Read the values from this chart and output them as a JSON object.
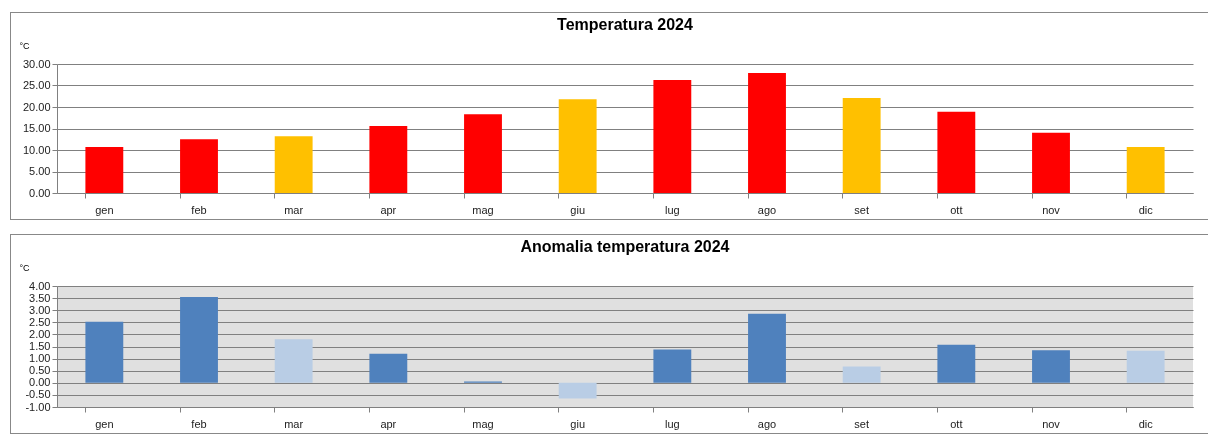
{
  "chart_data": [
    {
      "type": "bar",
      "title": "Temperatura 2024",
      "ylabel": "°C",
      "categories": [
        "gen",
        "feb",
        "mar",
        "apr",
        "mag",
        "giu",
        "lug",
        "ago",
        "set",
        "ott",
        "nov",
        "dic"
      ],
      "values": [
        10.7,
        12.5,
        13.2,
        15.6,
        18.3,
        21.8,
        26.3,
        27.9,
        22.1,
        18.9,
        14.0,
        10.7
      ],
      "colors": [
        "#ff0000",
        "#ff0000",
        "#ffc000",
        "#ff0000",
        "#ff0000",
        "#ffc000",
        "#ff0000",
        "#ff0000",
        "#ffc000",
        "#ff0000",
        "#ff0000",
        "#ffc000"
      ],
      "ylim": [
        0,
        30
      ],
      "yticks": [
        {
          "value": 0,
          "label": "0.00"
        },
        {
          "value": 5,
          "label": "5.00"
        },
        {
          "value": 10,
          "label": "10.00"
        },
        {
          "value": 15,
          "label": "15.00"
        },
        {
          "value": 20,
          "label": "20.00"
        },
        {
          "value": 25,
          "label": "25.00"
        },
        {
          "value": 30,
          "label": "30.00"
        }
      ],
      "grid": "y"
    },
    {
      "type": "bar",
      "title": "Anomalia temperatura 2024",
      "ylabel": "°C",
      "categories": [
        "gen",
        "feb",
        "mar",
        "apr",
        "mag",
        "giu",
        "lug",
        "ago",
        "set",
        "ott",
        "nov",
        "dic"
      ],
      "values": [
        2.52,
        3.55,
        1.8,
        1.2,
        0.05,
        -0.65,
        1.38,
        2.85,
        0.67,
        1.57,
        1.35,
        1.32
      ],
      "colors": [
        "#4f81bd",
        "#4f81bd",
        "#b9cde5",
        "#4f81bd",
        "#4f81bd",
        "#b9cde5",
        "#4f81bd",
        "#4f81bd",
        "#b9cde5",
        "#4f81bd",
        "#4f81bd",
        "#b9cde5"
      ],
      "ylim": [
        -1,
        4
      ],
      "yticks": [
        {
          "value": -1,
          "label": "-1.00"
        },
        {
          "value": -0.5,
          "label": "-0.50"
        },
        {
          "value": 0,
          "label": "0.00"
        },
        {
          "value": 0.5,
          "label": "0.50"
        },
        {
          "value": 1,
          "label": "1.00"
        },
        {
          "value": 1.5,
          "label": "1.50"
        },
        {
          "value": 2,
          "label": "2.00"
        },
        {
          "value": 2.5,
          "label": "2.50"
        },
        {
          "value": 3,
          "label": "3.00"
        },
        {
          "value": 3.5,
          "label": "3.50"
        },
        {
          "value": 4,
          "label": "4.00"
        }
      ],
      "grid": "y"
    }
  ]
}
